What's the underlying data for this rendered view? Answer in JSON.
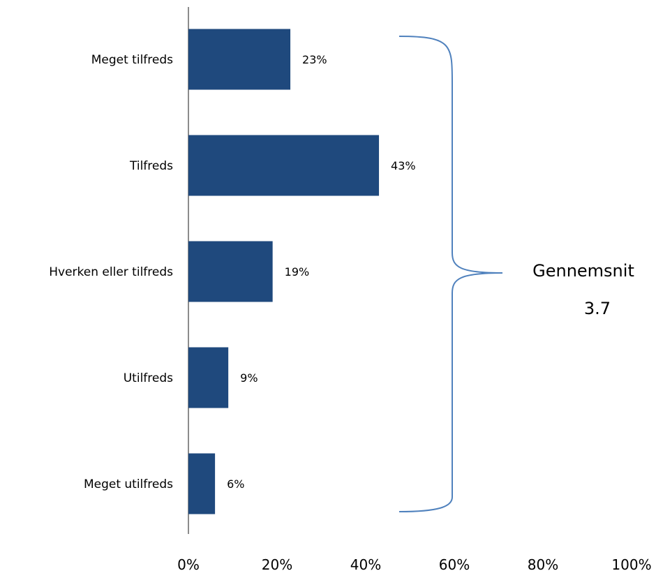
{
  "chart_data": {
    "type": "bar",
    "orientation": "horizontal",
    "categories": [
      "Meget tilfreds",
      "Tilfreds",
      "Hverken eller tilfreds",
      "Utilfreds",
      "Meget utilfreds"
    ],
    "values": [
      23,
      43,
      19,
      9,
      6
    ],
    "value_labels": [
      "23%",
      "43%",
      "19%",
      "9%",
      "6%"
    ],
    "xlim": [
      0,
      100
    ],
    "x_ticks": [
      0,
      20,
      40,
      60,
      80,
      100
    ],
    "x_tick_labels": [
      "0%",
      "20%",
      "40%",
      "60%",
      "80%",
      "100%"
    ],
    "grid": false,
    "bar_color": "#1f497d",
    "brace_color": "#4f81bd",
    "annotation": {
      "title": "Gennemsnit",
      "value": "3.7"
    }
  }
}
